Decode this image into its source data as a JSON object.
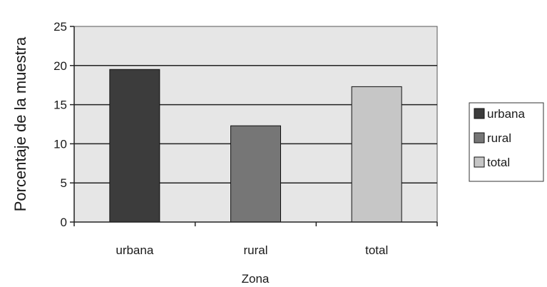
{
  "chart_data": {
    "type": "bar",
    "categories": [
      "urbana",
      "rural",
      "total"
    ],
    "values": [
      19.5,
      12.3,
      17.3
    ],
    "colors": [
      "#3c3c3c",
      "#767676",
      "#c6c6c6"
    ],
    "xlabel": "Zona",
    "ylabel": "Porcentaje de la muestra",
    "ylim": [
      0,
      25
    ],
    "yticks": [
      0,
      5,
      10,
      15,
      20,
      25
    ],
    "grid": true,
    "plot_background": "#e6e6e6",
    "legend": {
      "placement": "right",
      "entries": [
        "urbana",
        "rural",
        "total"
      ]
    }
  }
}
